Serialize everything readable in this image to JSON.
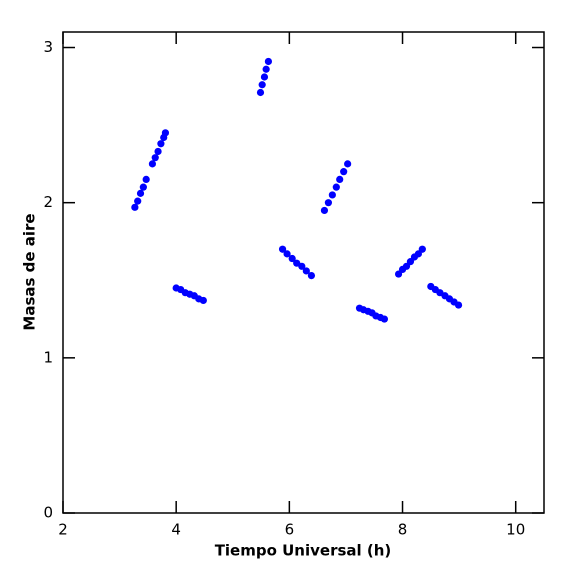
{
  "chart_data": {
    "type": "scatter",
    "xlabel": "Tiempo Universal (h)",
    "ylabel": "Masas de aire",
    "color": "#0000ff",
    "x": [
      3.27,
      3.32,
      3.37,
      3.42,
      3.47,
      3.58,
      3.63,
      3.68,
      3.73,
      3.78,
      3.81,
      4.0,
      4.08,
      4.16,
      4.24,
      4.32,
      4.4,
      4.48,
      5.49,
      5.52,
      5.56,
      5.59,
      5.63,
      5.88,
      5.96,
      6.05,
      6.13,
      6.22,
      6.3,
      6.39,
      6.62,
      6.69,
      6.76,
      6.83,
      6.89,
      6.96,
      7.03,
      7.24,
      7.31,
      7.39,
      7.46,
      7.53,
      7.61,
      7.68,
      7.93,
      8.0,
      8.07,
      8.14,
      8.21,
      8.28,
      8.35,
      8.5,
      8.58,
      8.66,
      8.75,
      8.83,
      8.91,
      8.99
    ],
    "values": [
      1.97,
      2.01,
      2.06,
      2.1,
      2.15,
      2.25,
      2.29,
      2.33,
      2.38,
      2.42,
      2.45,
      1.45,
      1.44,
      1.42,
      1.41,
      1.4,
      1.38,
      1.37,
      2.71,
      2.76,
      2.81,
      2.86,
      2.91,
      1.7,
      1.67,
      1.64,
      1.61,
      1.59,
      1.56,
      1.53,
      1.95,
      2.0,
      2.05,
      2.1,
      2.15,
      2.2,
      2.25,
      1.32,
      1.31,
      1.3,
      1.29,
      1.27,
      1.26,
      1.25,
      1.54,
      1.57,
      1.59,
      1.62,
      1.65,
      1.67,
      1.7,
      1.46,
      1.44,
      1.42,
      1.4,
      1.38,
      1.36,
      1.34
    ],
    "xlim": [
      2,
      10.5
    ],
    "xticks": [
      2,
      4,
      6,
      8,
      10
    ],
    "ylim": [
      0,
      3.1
    ],
    "yticks": [
      0,
      1,
      2,
      3
    ]
  }
}
